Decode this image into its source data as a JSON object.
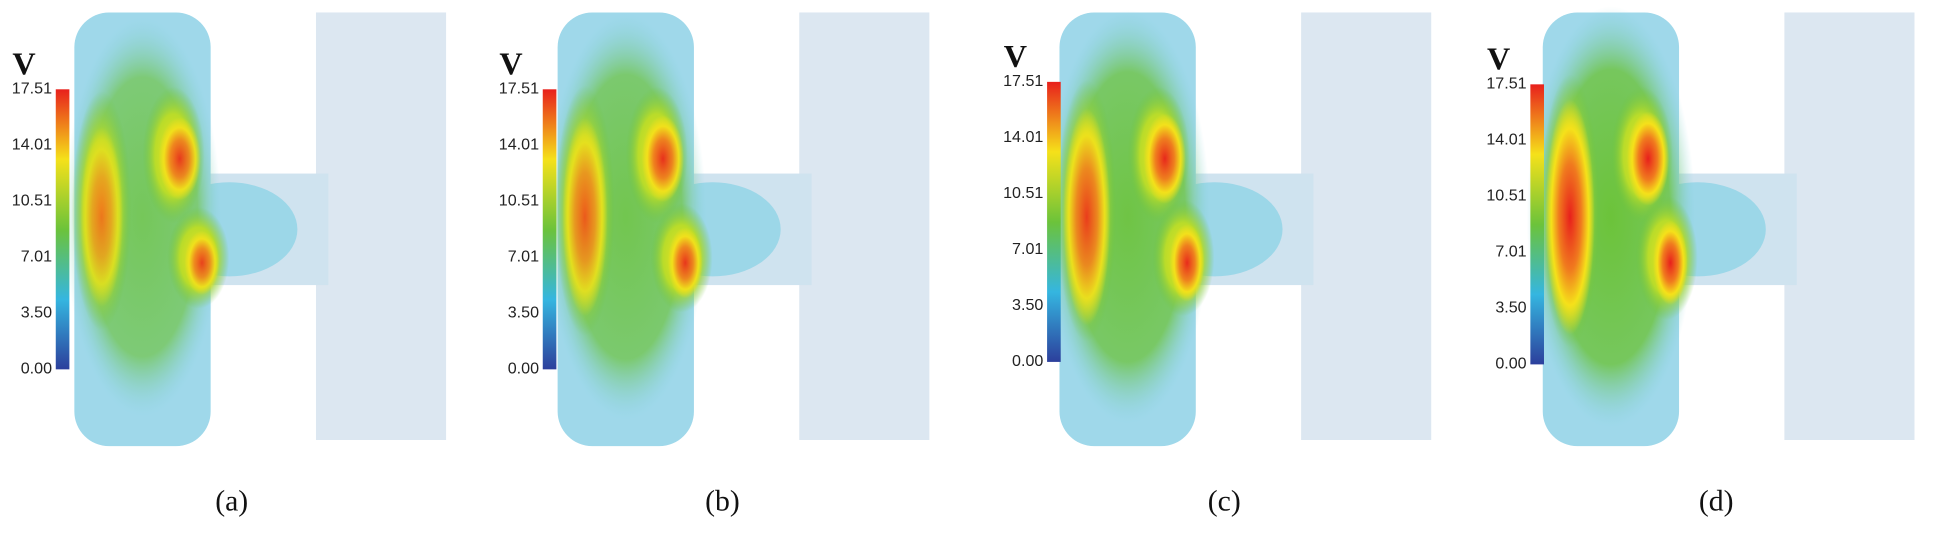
{
  "panels": [
    {
      "label": "V",
      "ticks": [
        "17.51",
        "14.01",
        "10.51",
        "7.01",
        "3.50",
        "0.00"
      ],
      "caption": "(a)"
    },
    {
      "label": "V",
      "ticks": [
        "17.51",
        "14.01",
        "10.51",
        "7.01",
        "3.50",
        "0.00"
      ],
      "caption": "(b)"
    },
    {
      "label": "V",
      "ticks": [
        "17.51",
        "14.01",
        "10.51",
        "7.01",
        "3.50",
        "0.00"
      ],
      "caption": "(c)"
    },
    {
      "label": "V",
      "ticks": [
        "17.51",
        "14.01",
        "10.51",
        "7.01",
        "3.50",
        "0.00"
      ],
      "caption": "(d)"
    }
  ]
}
